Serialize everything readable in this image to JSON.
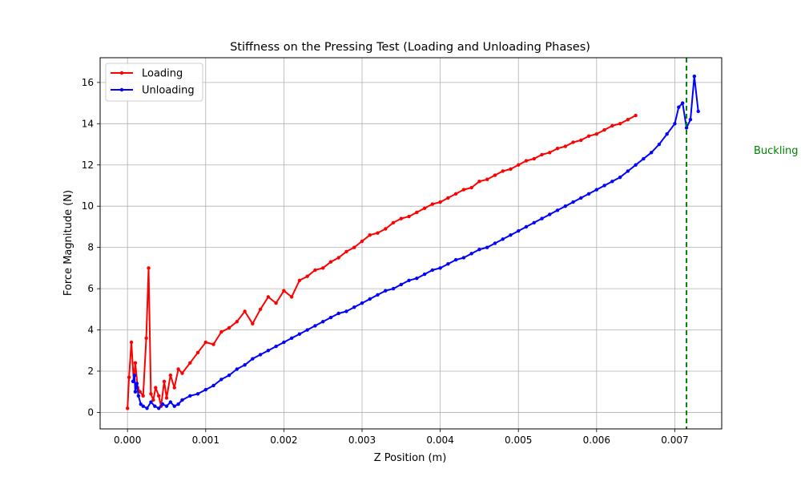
{
  "chart_data": {
    "type": "line",
    "title": "Stiffness on the Pressing Test (Loading and Unloading Phases)",
    "xlabel": "Z Position (m)",
    "ylabel": "Force Magnitude (N)",
    "xlim": [
      -0.00035,
      0.0076
    ],
    "ylim": [
      -0.8,
      17.2
    ],
    "xticks": [
      0.0,
      0.001,
      0.002,
      0.003,
      0.004,
      0.005,
      0.006,
      0.007
    ],
    "xtick_labels": [
      "0.000",
      "0.001",
      "0.002",
      "0.003",
      "0.004",
      "0.005",
      "0.006",
      "0.007"
    ],
    "yticks": [
      0,
      2,
      4,
      6,
      8,
      10,
      12,
      14,
      16
    ],
    "ytick_labels": [
      "0",
      "2",
      "4",
      "6",
      "8",
      "10",
      "12",
      "14",
      "16"
    ],
    "grid": true,
    "legend_position": "top-left",
    "series": [
      {
        "name": "Loading",
        "color": "#ff0000",
        "marker": "dot",
        "x": [
          0.0,
          2e-05,
          5e-05,
          8e-05,
          0.0001,
          0.00013,
          0.00016,
          0.0002,
          0.00024,
          0.00027,
          0.0003,
          0.00033,
          0.00036,
          0.0004,
          0.00043,
          0.00047,
          0.0005,
          0.00055,
          0.0006,
          0.00065,
          0.0007,
          0.0008,
          0.0009,
          0.001,
          0.0011,
          0.0012,
          0.0013,
          0.0014,
          0.0015,
          0.0016,
          0.0017,
          0.0018,
          0.0019,
          0.002,
          0.0021,
          0.0022,
          0.0023,
          0.0024,
          0.0025,
          0.0026,
          0.0027,
          0.0028,
          0.0029,
          0.003,
          0.0031,
          0.0032,
          0.0033,
          0.0034,
          0.0035,
          0.0036,
          0.0037,
          0.0038,
          0.0039,
          0.004,
          0.0041,
          0.0042,
          0.0043,
          0.0044,
          0.0045,
          0.0046,
          0.0047,
          0.0048,
          0.0049,
          0.005,
          0.0051,
          0.0052,
          0.0053,
          0.0054,
          0.0055,
          0.0056,
          0.0057,
          0.0058,
          0.0059,
          0.006,
          0.0061,
          0.0062,
          0.0063,
          0.0064,
          0.0065
        ],
        "y": [
          0.2,
          1.7,
          3.4,
          1.5,
          2.4,
          1.2,
          1.0,
          0.8,
          3.6,
          7.0,
          0.9,
          0.6,
          1.2,
          0.8,
          0.3,
          1.5,
          0.7,
          1.8,
          1.2,
          2.1,
          1.9,
          2.4,
          2.9,
          3.4,
          3.3,
          3.9,
          4.1,
          4.4,
          4.9,
          4.3,
          5.0,
          5.6,
          5.3,
          5.9,
          5.6,
          6.4,
          6.6,
          6.9,
          7.0,
          7.3,
          7.5,
          7.8,
          8.0,
          8.3,
          8.6,
          8.7,
          8.9,
          9.2,
          9.4,
          9.5,
          9.7,
          9.9,
          10.1,
          10.2,
          10.4,
          10.6,
          10.8,
          10.9,
          11.2,
          11.3,
          11.5,
          11.7,
          11.8,
          12.0,
          12.2,
          12.3,
          12.5,
          12.6,
          12.8,
          12.9,
          13.1,
          13.2,
          13.4,
          13.5,
          13.7,
          13.9,
          14.0,
          14.2,
          14.4
        ]
      },
      {
        "name": "Unloading",
        "color": "#0000ff",
        "marker": "dot",
        "x": [
          7e-05,
          9e-05,
          0.0001,
          0.00012,
          0.00014,
          0.00017,
          0.0002,
          0.00025,
          0.0003,
          0.00035,
          0.0004,
          0.00045,
          0.0005,
          0.00055,
          0.0006,
          0.00065,
          0.0007,
          0.0008,
          0.0009,
          0.001,
          0.0011,
          0.0012,
          0.0013,
          0.0014,
          0.0015,
          0.0016,
          0.0017,
          0.0018,
          0.0019,
          0.002,
          0.0021,
          0.0022,
          0.0023,
          0.0024,
          0.0025,
          0.0026,
          0.0027,
          0.0028,
          0.0029,
          0.003,
          0.0031,
          0.0032,
          0.0033,
          0.0034,
          0.0035,
          0.0036,
          0.0037,
          0.0038,
          0.0039,
          0.004,
          0.0041,
          0.0042,
          0.0043,
          0.0044,
          0.0045,
          0.0046,
          0.0047,
          0.0048,
          0.0049,
          0.005,
          0.0051,
          0.0052,
          0.0053,
          0.0054,
          0.0055,
          0.0056,
          0.0057,
          0.0058,
          0.0059,
          0.006,
          0.0061,
          0.0062,
          0.0063,
          0.0064,
          0.0065,
          0.0066,
          0.0067,
          0.0068,
          0.0069,
          0.007,
          0.00705,
          0.0071,
          0.00715,
          0.0072,
          0.00725,
          0.0073
        ],
        "y": [
          1.5,
          1.8,
          1.0,
          1.4,
          0.8,
          0.4,
          0.3,
          0.2,
          0.5,
          0.3,
          0.2,
          0.4,
          0.3,
          0.5,
          0.3,
          0.4,
          0.6,
          0.8,
          0.9,
          1.1,
          1.3,
          1.6,
          1.8,
          2.1,
          2.3,
          2.6,
          2.8,
          3.0,
          3.2,
          3.4,
          3.6,
          3.8,
          4.0,
          4.2,
          4.4,
          4.6,
          4.8,
          4.9,
          5.1,
          5.3,
          5.5,
          5.7,
          5.9,
          6.0,
          6.2,
          6.4,
          6.5,
          6.7,
          6.9,
          7.0,
          7.2,
          7.4,
          7.5,
          7.7,
          7.9,
          8.0,
          8.2,
          8.4,
          8.6,
          8.8,
          9.0,
          9.2,
          9.4,
          9.6,
          9.8,
          10.0,
          10.2,
          10.4,
          10.6,
          10.8,
          11.0,
          11.2,
          11.4,
          11.7,
          12.0,
          12.3,
          12.6,
          13.0,
          13.5,
          14.0,
          14.8,
          15.0,
          13.8,
          14.2,
          16.3,
          14.6
        ]
      }
    ],
    "annotations": [
      {
        "type": "vline",
        "x": 0.00715,
        "color": "#008000",
        "style": "dashed"
      },
      {
        "type": "text",
        "text": "Buckling",
        "color": "#008000"
      }
    ]
  }
}
